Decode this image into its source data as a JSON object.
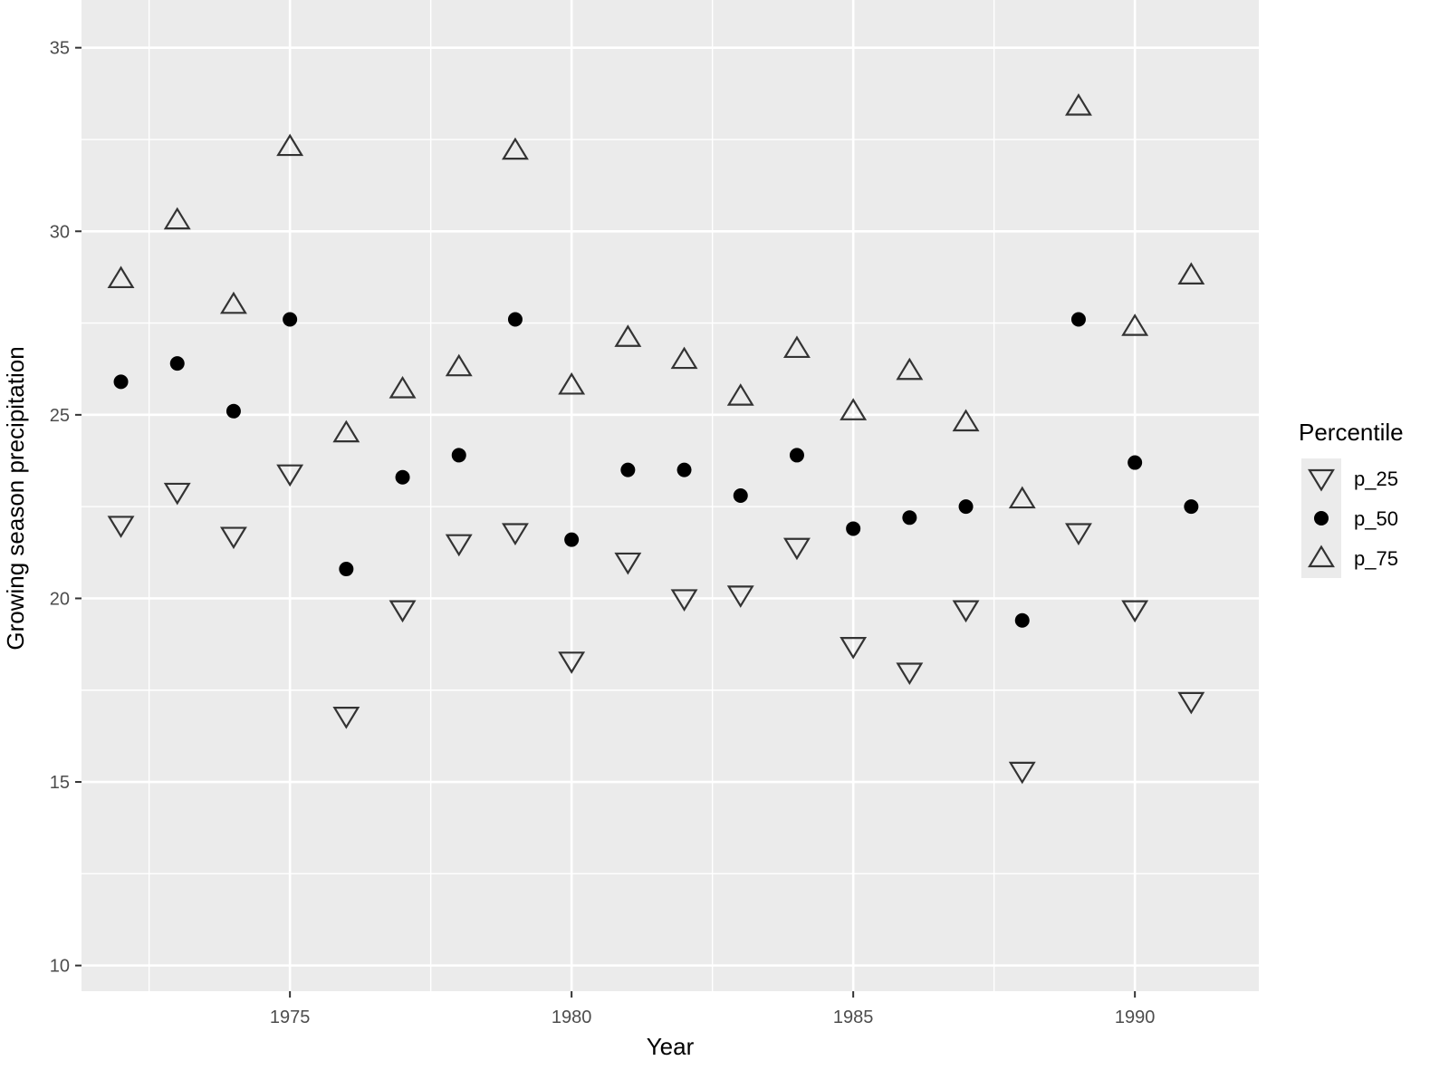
{
  "chart_data": {
    "type": "scatter",
    "title": "",
    "xlabel": "Year",
    "ylabel": "Growing season precipitation",
    "xlim": [
      1971.3,
      1992.2
    ],
    "ylim": [
      9.3,
      36.3
    ],
    "x_ticks": [
      1975,
      1980,
      1985,
      1990
    ],
    "y_ticks": [
      10,
      15,
      20,
      25,
      30,
      35
    ],
    "grid": true,
    "legend_position": "right",
    "legend_title": "Percentile",
    "x": [
      1972,
      1973,
      1974,
      1975,
      1976,
      1977,
      1978,
      1979,
      1980,
      1981,
      1982,
      1983,
      1984,
      1985,
      1986,
      1987,
      1988,
      1989,
      1990,
      1991
    ],
    "series": [
      {
        "name": "p_25",
        "marker": "triangle-down",
        "values": [
          22.0,
          22.9,
          21.7,
          23.4,
          16.8,
          19.7,
          21.5,
          21.8,
          18.3,
          21.0,
          20.0,
          20.1,
          21.4,
          18.7,
          18.0,
          19.7,
          15.3,
          21.8,
          19.7,
          17.2
        ]
      },
      {
        "name": "p_50",
        "marker": "circle",
        "values": [
          25.9,
          26.4,
          25.1,
          27.6,
          20.8,
          23.3,
          23.9,
          27.6,
          21.6,
          23.5,
          23.5,
          22.8,
          23.9,
          21.9,
          22.2,
          22.5,
          19.4,
          27.6,
          23.7,
          22.5
        ]
      },
      {
        "name": "p_75",
        "marker": "triangle-up",
        "values": [
          28.7,
          30.3,
          28.0,
          32.3,
          24.5,
          25.7,
          26.3,
          32.2,
          25.8,
          27.1,
          26.5,
          25.5,
          26.8,
          25.1,
          26.2,
          24.8,
          22.7,
          33.4,
          27.4,
          28.8
        ]
      }
    ],
    "colors": {
      "panel_background": "#ebebeb",
      "grid_major": "#ffffff",
      "grid_minor": "#f5f5f5",
      "tick_text": "#4d4d4d",
      "point_fill": "#000000",
      "open_marker_stroke": "#333333"
    }
  }
}
